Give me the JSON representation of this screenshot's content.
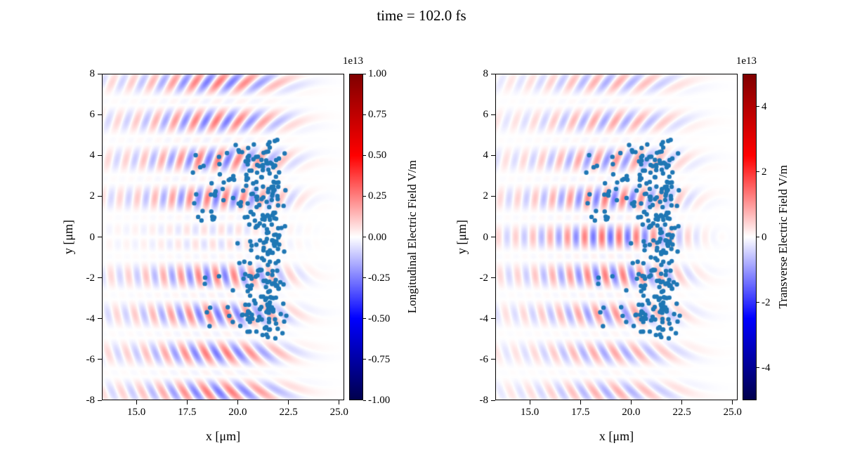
{
  "title": "time = 102.0 fs",
  "chart_data": [
    {
      "type": "heatmap+scatter",
      "panel": "longitudinal-field",
      "xlabel": "x [μm]",
      "ylabel": "y [μm]",
      "xlim": [
        13.3,
        25.25
      ],
      "ylim": [
        -8,
        8
      ],
      "grid": false,
      "xticks": [
        {
          "v": 15.0,
          "label": "15.0"
        },
        {
          "v": 17.5,
          "label": "17.5"
        },
        {
          "v": 20.0,
          "label": "20.0"
        },
        {
          "v": 22.5,
          "label": "22.5"
        },
        {
          "v": 25.0,
          "label": "25.0"
        }
      ],
      "yticks": [
        {
          "v": 8,
          "label": "8"
        },
        {
          "v": 6,
          "label": "6"
        },
        {
          "v": 4,
          "label": "4"
        },
        {
          "v": 2,
          "label": "2"
        },
        {
          "v": 0,
          "label": "0"
        },
        {
          "v": -2,
          "label": "-2"
        },
        {
          "v": -4,
          "label": "-4"
        },
        {
          "v": -6,
          "label": "-6"
        },
        {
          "v": -8,
          "label": "-8"
        }
      ],
      "colorbar": {
        "label": "Longitudinal Electric Field V/m",
        "scale_label": "1e13",
        "colormap": "seismic",
        "vmin": -1,
        "vmax": 1,
        "ticks": [
          {
            "v": 1.0,
            "label": "1.00"
          },
          {
            "v": 0.75,
            "label": "0.75"
          },
          {
            "v": 0.5,
            "label": "0.50"
          },
          {
            "v": 0.25,
            "label": "0.25"
          },
          {
            "v": 0.0,
            "label": "0.00"
          },
          {
            "v": -0.25,
            "label": "-0.25"
          },
          {
            "v": -0.5,
            "label": "-0.50"
          },
          {
            "v": -0.75,
            "label": "-0.75"
          },
          {
            "v": -1.0,
            "label": "-1.00"
          }
        ]
      },
      "field": {
        "symmetry": "odd",
        "wavelength": 0.85,
        "focus_x": 24.5,
        "y_compress": 0.75,
        "envelope_center": 19.0,
        "envelope_sigma": 3.2,
        "baseline": 0.25,
        "band_period": 1.9,
        "band_floor": 0.45,
        "band_amp": 0.55,
        "right_cutoff": 23.3,
        "phase": 0.0,
        "amplitude": 0.26,
        "odd_scale": 0.9,
        "axis_floor": 0.55,
        "axis_sigma": 4.0
      },
      "scatter": {
        "color": "#1f77b4",
        "radius": 3.2,
        "seed": 42,
        "clusters": [
          {
            "type": "band",
            "x_mean": 21.65,
            "x_std": 0.32,
            "y_min": -5.0,
            "y_max": 4.8,
            "count": 170
          },
          {
            "type": "band",
            "x_mean": 20.75,
            "x_std": 0.22,
            "y_min": 0.4,
            "y_max": 4.6,
            "count": 35
          },
          {
            "type": "band",
            "x_mean": 20.75,
            "x_std": 0.22,
            "y_min": -4.7,
            "y_max": -1.6,
            "count": 30
          },
          {
            "type": "uniform",
            "x_min": 17.6,
            "x_max": 20.5,
            "y_min": 0.8,
            "y_max": 4.6,
            "count": 45
          },
          {
            "type": "uniform",
            "x_min": 18.3,
            "x_max": 20.6,
            "y_min": -4.4,
            "y_max": -1.8,
            "count": 16
          },
          {
            "type": "uniform",
            "x_min": 19.6,
            "x_max": 21.3,
            "y_min": -1.4,
            "y_max": 0.4,
            "count": 10
          }
        ]
      }
    },
    {
      "type": "heatmap+scatter",
      "panel": "transverse-field",
      "xlabel": "x [μm]",
      "ylabel": "y [μm]",
      "xlim": [
        13.3,
        25.25
      ],
      "ylim": [
        -8,
        8
      ],
      "grid": false,
      "xticks": [
        {
          "v": 15.0,
          "label": "15.0"
        },
        {
          "v": 17.5,
          "label": "17.5"
        },
        {
          "v": 20.0,
          "label": "20.0"
        },
        {
          "v": 22.5,
          "label": "22.5"
        },
        {
          "v": 25.0,
          "label": "25.0"
        }
      ],
      "yticks": [
        {
          "v": 8,
          "label": "8"
        },
        {
          "v": 6,
          "label": "6"
        },
        {
          "v": 4,
          "label": "4"
        },
        {
          "v": 2,
          "label": "2"
        },
        {
          "v": 0,
          "label": "0"
        },
        {
          "v": -2,
          "label": "-2"
        },
        {
          "v": -4,
          "label": "-4"
        },
        {
          "v": -6,
          "label": "-6"
        },
        {
          "v": -8,
          "label": "-8"
        }
      ],
      "colorbar": {
        "label": "Transverse Electric Field V/m",
        "scale_label": "1e13",
        "colormap": "seismic",
        "vmin": -5,
        "vmax": 5,
        "ticks": [
          {
            "v": 4,
            "label": "4"
          },
          {
            "v": 2,
            "label": "2"
          },
          {
            "v": 0,
            "label": "0"
          },
          {
            "v": -2,
            "label": "-2"
          },
          {
            "v": -4,
            "label": "-4"
          }
        ]
      },
      "field": {
        "symmetry": "even",
        "wavelength": 0.85,
        "focus_x": 24.5,
        "y_compress": 0.75,
        "envelope_center": 19.0,
        "envelope_sigma": 3.2,
        "baseline": 0.25,
        "band_period": 1.9,
        "band_floor": 0.45,
        "band_amp": 0.55,
        "right_cutoff": 23.3,
        "phase": 1.6,
        "amplitude": 0.28,
        "odd_scale": 0.9,
        "axis_floor": 0.55,
        "axis_sigma": 4.0
      },
      "scatter": {
        "color": "#1f77b4",
        "radius": 3.2,
        "seed": 42,
        "clusters": [
          {
            "type": "band",
            "x_mean": 21.65,
            "x_std": 0.32,
            "y_min": -5.0,
            "y_max": 4.8,
            "count": 170
          },
          {
            "type": "band",
            "x_mean": 20.75,
            "x_std": 0.22,
            "y_min": 0.4,
            "y_max": 4.6,
            "count": 35
          },
          {
            "type": "band",
            "x_mean": 20.75,
            "x_std": 0.22,
            "y_min": -4.7,
            "y_max": -1.6,
            "count": 30
          },
          {
            "type": "uniform",
            "x_min": 17.6,
            "x_max": 20.5,
            "y_min": 0.8,
            "y_max": 4.6,
            "count": 45
          },
          {
            "type": "uniform",
            "x_min": 18.3,
            "x_max": 20.6,
            "y_min": -4.4,
            "y_max": -1.8,
            "count": 16
          },
          {
            "type": "uniform",
            "x_min": 19.6,
            "x_max": 21.3,
            "y_min": -1.4,
            "y_max": 0.4,
            "count": 10
          }
        ]
      }
    }
  ]
}
